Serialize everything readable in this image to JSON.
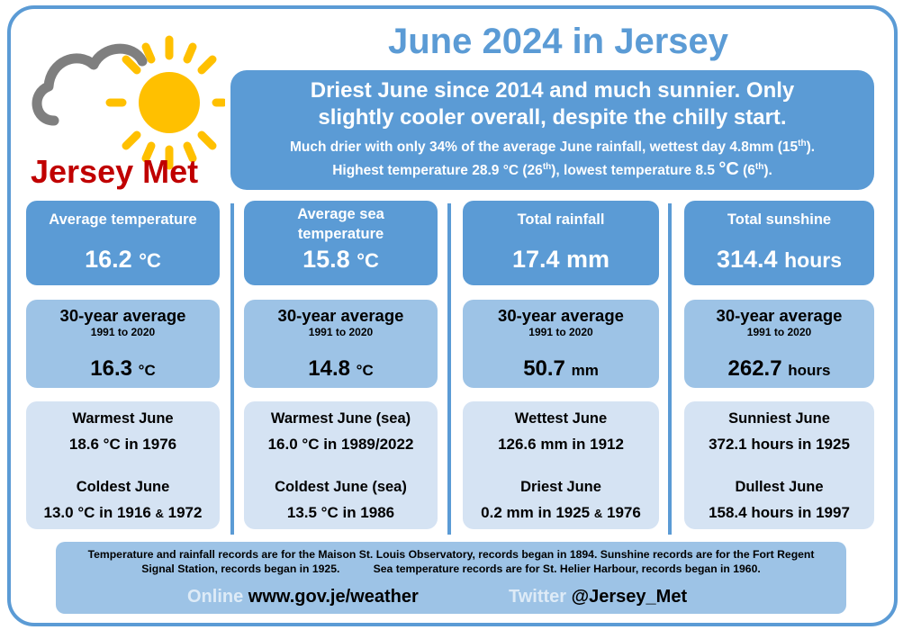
{
  "brand": {
    "name": "Jersey Met",
    "colors": {
      "accent_blue": "#5b9bd5",
      "mid_blue": "#9dc3e6",
      "light_blue": "#d5e3f3",
      "brand_red": "#c00000",
      "sun_yellow": "#ffc000",
      "cloud_grey": "#7f7f7f"
    },
    "icons": [
      "sun-icon",
      "cloud-icon"
    ]
  },
  "title": "June 2024 in Jersey",
  "summary": {
    "headline_1": "Driest June since 2014 and much sunnier. Only",
    "headline_2": "slightly cooler overall, despite the chilly start.",
    "line_1_pre": "Much drier with only 34% of the average June rainfall, wettest day 4.8mm (15",
    "line_1_sup": "th",
    "line_1_post": ").",
    "line_2_pre": "Highest temperature 28.9 °C (26",
    "line_2_sup1": "th",
    "line_2_mid": "), lowest temperature 8.5 ",
    "line_2_unit": "°C",
    "line_2_mid2": " (6",
    "line_2_sup2": "th",
    "line_2_post": ")."
  },
  "columns": [
    {
      "top_label": "Average temperature",
      "top_value": "16.2",
      "top_unit": "°C",
      "avg_head": "30-year average",
      "avg_range": "1991 to 2020",
      "avg_value": "16.3",
      "avg_unit": "°C",
      "rec1_head": "Warmest June",
      "rec1_val": "18.6 °C in 1976",
      "rec2_head": "Coldest June",
      "rec2_val_a": "13.0 °C in 1916",
      "rec2_amp": "&",
      "rec2_val_b": "1972"
    },
    {
      "top_label": "Average sea temperature",
      "top_value": "15.8",
      "top_unit": "°C",
      "avg_head": "30-year average",
      "avg_range": "1991 to 2020",
      "avg_value": "14.8",
      "avg_unit": "°C",
      "rec1_head": "Warmest June (sea)",
      "rec1_val": "16.0 °C in 1989/2022",
      "rec2_head": "Coldest June (sea)",
      "rec2_val_a": "13.5 °C in 1986",
      "rec2_amp": "",
      "rec2_val_b": ""
    },
    {
      "top_label": "Total rainfall",
      "top_value": "17.4 mm",
      "top_unit": "",
      "avg_head": "30-year average",
      "avg_range": "1991 to 2020",
      "avg_value": "50.7",
      "avg_unit": "mm",
      "rec1_head": "Wettest June",
      "rec1_val": "126.6 mm in 1912",
      "rec2_head": "Driest June",
      "rec2_val_a": "0.2 mm in 1925",
      "rec2_amp": "&",
      "rec2_val_b": "1976"
    },
    {
      "top_label": "Total sunshine",
      "top_value": "314.4",
      "top_unit": "hours",
      "avg_head": "30-year average",
      "avg_range": "1991 to 2020",
      "avg_value": "262.7",
      "avg_unit": "hours",
      "rec1_head": "Sunniest June",
      "rec1_val": "372.1 hours in 1925",
      "rec2_head": "Dullest June",
      "rec2_val_a": "158.4 hours in 1997",
      "rec2_amp": "",
      "rec2_val_b": ""
    }
  ],
  "footer": {
    "note_1": "Temperature and rainfall records are for the Maison St. Louis Observatory, records began in 1894.  Sunshine records are for the Fort Regent",
    "note_2a": "Signal Station, records began in 1925.",
    "note_2b": "Sea temperature records are for St. Helier Harbour, records began in 1960.",
    "online_label": "Online",
    "online_url": "www.gov.je/weather",
    "twitter_label": "Twitter",
    "twitter_handle": "@Jersey_Met"
  }
}
